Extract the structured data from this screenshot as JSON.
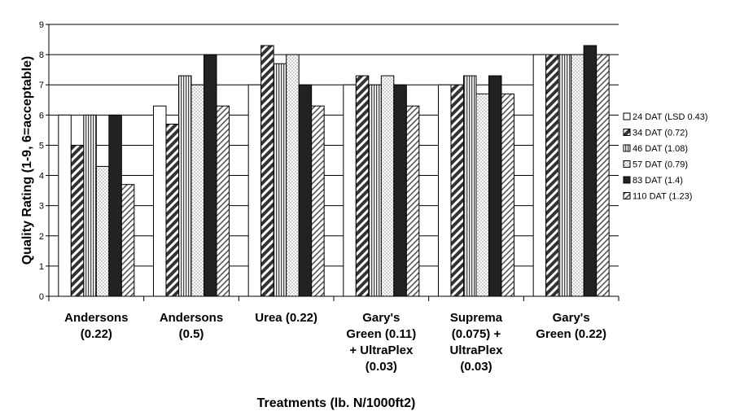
{
  "chart_data": {
    "type": "bar",
    "xlabel": "Treatments (lb. N/1000ft2)",
    "ylabel": "Quality Rating (1-9, 6=acceptable)",
    "ylim": [
      0,
      9
    ],
    "yticks": [
      "0",
      "1",
      "2",
      "3",
      "4",
      "5",
      "6",
      "7",
      "8",
      "9"
    ],
    "grid": "horizontal",
    "legend_position": "right",
    "categories": [
      [
        "Andersons",
        "(0.22)"
      ],
      [
        "Andersons",
        "(0.5)"
      ],
      [
        "Urea (0.22)"
      ],
      [
        "Gary's",
        "Green (0.11)",
        "+ UltraPlex",
        "(0.03)"
      ],
      [
        "Suprema",
        "(0.075) +",
        "UltraPlex",
        "(0.03)"
      ],
      [
        "Gary's",
        "Green (0.22)"
      ]
    ],
    "series": [
      {
        "name": "24 DAT (LSD 0.43)",
        "pattern": "white",
        "values": [
          6.0,
          6.3,
          7.0,
          7.0,
          7.0,
          8.0
        ]
      },
      {
        "name": "34 DAT (0.72)",
        "pattern": "diagonal",
        "values": [
          5.0,
          5.7,
          8.3,
          7.3,
          7.0,
          8.0
        ]
      },
      {
        "name": "46 DAT (1.08)",
        "pattern": "vertical",
        "values": [
          6.0,
          7.3,
          7.7,
          7.0,
          7.3,
          8.0
        ]
      },
      {
        "name": "57 DAT (0.79)",
        "pattern": "dots",
        "values": [
          4.3,
          7.0,
          8.0,
          7.3,
          6.7,
          8.0
        ]
      },
      {
        "name": "83 DAT (1.4)",
        "pattern": "black",
        "values": [
          6.0,
          8.0,
          7.0,
          7.0,
          7.3,
          8.3
        ]
      },
      {
        "name": "110 DAT (1.23)",
        "pattern": "hatch",
        "values": [
          3.7,
          6.3,
          6.3,
          6.3,
          6.7,
          8.0
        ]
      }
    ]
  }
}
